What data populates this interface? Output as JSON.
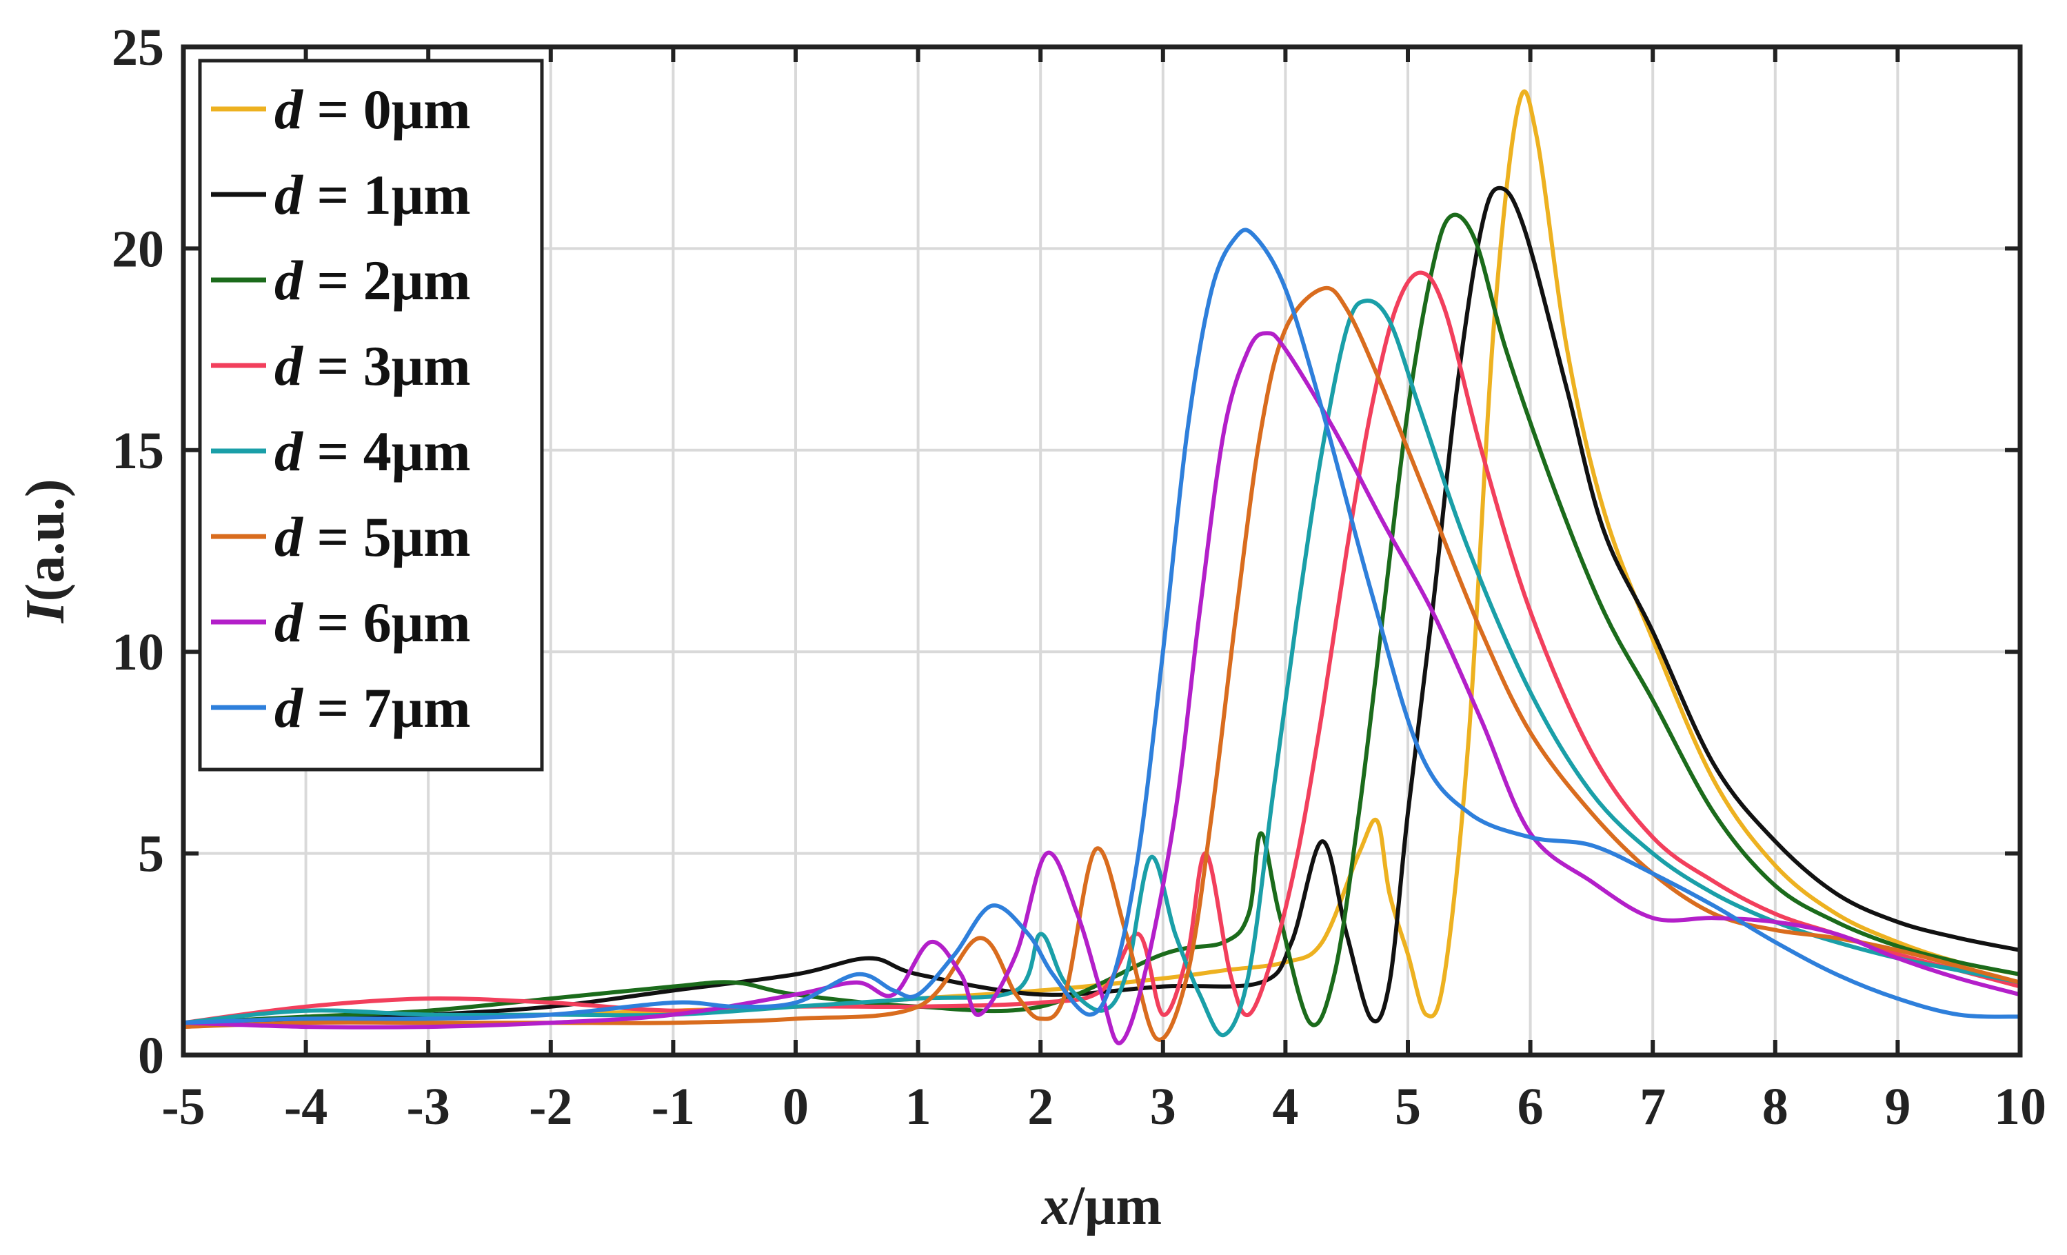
{
  "chart_data": {
    "type": "line",
    "title": "",
    "xlabel": {
      "var": "x",
      "rest": "/μm"
    },
    "ylabel": {
      "var": "I",
      "rest": "(a.u.)"
    },
    "xlim": [
      -5,
      10
    ],
    "ylim": [
      0,
      25
    ],
    "xticks": [
      -5,
      -4,
      -3,
      -2,
      -1,
      0,
      1,
      2,
      3,
      4,
      5,
      6,
      7,
      8,
      9,
      10
    ],
    "yticks": [
      0,
      5,
      10,
      15,
      20,
      25
    ],
    "grid": true,
    "legend_position": "top-left",
    "series": [
      {
        "name": "d = 0μm",
        "d_prefix": "d",
        "label_rest": " = 0μm",
        "color": "#EDB120",
        "points": [
          [
            -5,
            0.8
          ],
          [
            -4,
            0.85
          ],
          [
            -3,
            0.9
          ],
          [
            -2,
            1.0
          ],
          [
            -1,
            1.1
          ],
          [
            0,
            1.2
          ],
          [
            1,
            1.4
          ],
          [
            2,
            1.6
          ],
          [
            3,
            1.9
          ],
          [
            3.5,
            2.1
          ],
          [
            4,
            2.3
          ],
          [
            4.3,
            2.8
          ],
          [
            4.6,
            5.0
          ],
          [
            4.75,
            5.8
          ],
          [
            4.85,
            4.0
          ],
          [
            5.0,
            2.5
          ],
          [
            5.15,
            1.0
          ],
          [
            5.3,
            2.0
          ],
          [
            5.5,
            8.0
          ],
          [
            5.7,
            18.0
          ],
          [
            5.9,
            23.5
          ],
          [
            6.05,
            22.8
          ],
          [
            6.3,
            17.5
          ],
          [
            6.6,
            13.5
          ],
          [
            7.0,
            10.3
          ],
          [
            7.5,
            6.8
          ],
          [
            8.0,
            4.7
          ],
          [
            8.5,
            3.5
          ],
          [
            9.0,
            2.8
          ],
          [
            9.5,
            2.3
          ],
          [
            10,
            2.0
          ]
        ]
      },
      {
        "name": "d = 1μm",
        "d_prefix": "d",
        "label_rest": " = 1μm",
        "color": "#111111",
        "points": [
          [
            -5,
            0.8
          ],
          [
            -4,
            0.9
          ],
          [
            -3,
            1.0
          ],
          [
            -2,
            1.2
          ],
          [
            -1,
            1.6
          ],
          [
            0,
            2.0
          ],
          [
            0.6,
            2.4
          ],
          [
            1.0,
            2.0
          ],
          [
            2.0,
            1.5
          ],
          [
            3.0,
            1.7
          ],
          [
            3.8,
            1.8
          ],
          [
            4.05,
            2.8
          ],
          [
            4.3,
            5.3
          ],
          [
            4.5,
            3.0
          ],
          [
            4.7,
            0.9
          ],
          [
            4.85,
            1.8
          ],
          [
            5.0,
            6.0
          ],
          [
            5.2,
            11.0
          ],
          [
            5.4,
            16.5
          ],
          [
            5.6,
            20.5
          ],
          [
            5.75,
            21.5
          ],
          [
            5.95,
            20.5
          ],
          [
            6.3,
            16.5
          ],
          [
            6.6,
            13.0
          ],
          [
            7.0,
            10.5
          ],
          [
            7.5,
            7.2
          ],
          [
            8.0,
            5.3
          ],
          [
            8.5,
            4.0
          ],
          [
            9.0,
            3.3
          ],
          [
            9.5,
            2.9
          ],
          [
            10,
            2.6
          ]
        ]
      },
      {
        "name": "d = 2μm",
        "d_prefix": "d",
        "label_rest": " = 2μm",
        "color": "#1B6B1B",
        "points": [
          [
            -5,
            0.8
          ],
          [
            -4,
            0.95
          ],
          [
            -3,
            1.1
          ],
          [
            -2,
            1.4
          ],
          [
            -1,
            1.7
          ],
          [
            -0.5,
            1.8
          ],
          [
            0,
            1.5
          ],
          [
            1,
            1.2
          ],
          [
            2,
            1.2
          ],
          [
            3,
            2.5
          ],
          [
            3.5,
            2.8
          ],
          [
            3.7,
            3.5
          ],
          [
            3.8,
            5.5
          ],
          [
            3.95,
            3.5
          ],
          [
            4.2,
            0.8
          ],
          [
            4.4,
            2.0
          ],
          [
            4.6,
            6.0
          ],
          [
            4.8,
            11.0
          ],
          [
            5.0,
            16.0
          ],
          [
            5.2,
            19.5
          ],
          [
            5.35,
            20.8
          ],
          [
            5.55,
            20.2
          ],
          [
            5.8,
            17.5
          ],
          [
            6.2,
            14.0
          ],
          [
            6.6,
            11.0
          ],
          [
            7.0,
            8.8
          ],
          [
            7.5,
            6.0
          ],
          [
            8.0,
            4.2
          ],
          [
            8.5,
            3.3
          ],
          [
            9.0,
            2.7
          ],
          [
            9.5,
            2.3
          ],
          [
            10,
            2.0
          ]
        ]
      },
      {
        "name": "d = 3μm",
        "d_prefix": "d",
        "label_rest": " = 3μm",
        "color": "#F23F5C",
        "points": [
          [
            -5,
            0.8
          ],
          [
            -4,
            1.2
          ],
          [
            -3,
            1.4
          ],
          [
            -2,
            1.3
          ],
          [
            -1,
            1.1
          ],
          [
            0,
            1.2
          ],
          [
            1,
            1.2
          ],
          [
            2,
            1.3
          ],
          [
            2.5,
            1.6
          ],
          [
            2.8,
            3.0
          ],
          [
            3.0,
            1.0
          ],
          [
            3.2,
            2.5
          ],
          [
            3.35,
            5.0
          ],
          [
            3.55,
            2.0
          ],
          [
            3.7,
            1.0
          ],
          [
            3.9,
            2.5
          ],
          [
            4.1,
            5.0
          ],
          [
            4.3,
            8.5
          ],
          [
            4.5,
            12.5
          ],
          [
            4.7,
            16.0
          ],
          [
            4.9,
            18.5
          ],
          [
            5.1,
            19.4
          ],
          [
            5.3,
            18.5
          ],
          [
            5.6,
            15.0
          ],
          [
            6.0,
            11.0
          ],
          [
            6.5,
            7.5
          ],
          [
            7.0,
            5.4
          ],
          [
            7.5,
            4.3
          ],
          [
            8.0,
            3.5
          ],
          [
            8.5,
            3.0
          ],
          [
            9.0,
            2.5
          ],
          [
            9.5,
            2.1
          ],
          [
            10,
            1.7
          ]
        ]
      },
      {
        "name": "d = 4μm",
        "d_prefix": "d",
        "label_rest": " = 4μm",
        "color": "#1A9FA8",
        "points": [
          [
            -5,
            0.8
          ],
          [
            -4,
            1.1
          ],
          [
            -3,
            1.0
          ],
          [
            -2,
            1.0
          ],
          [
            -1,
            1.0
          ],
          [
            0,
            1.2
          ],
          [
            1,
            1.4
          ],
          [
            1.8,
            1.6
          ],
          [
            2.0,
            3.0
          ],
          [
            2.2,
            1.8
          ],
          [
            2.5,
            1.1
          ],
          [
            2.7,
            2.0
          ],
          [
            2.9,
            4.9
          ],
          [
            3.1,
            3.0
          ],
          [
            3.3,
            1.5
          ],
          [
            3.5,
            0.5
          ],
          [
            3.7,
            2.0
          ],
          [
            3.9,
            6.5
          ],
          [
            4.1,
            11.0
          ],
          [
            4.3,
            15.0
          ],
          [
            4.5,
            18.0
          ],
          [
            4.65,
            18.7
          ],
          [
            4.85,
            18.2
          ],
          [
            5.1,
            16.0
          ],
          [
            5.5,
            12.5
          ],
          [
            6.0,
            9.0
          ],
          [
            6.5,
            6.5
          ],
          [
            7.0,
            5.0
          ],
          [
            7.5,
            4.0
          ],
          [
            8.0,
            3.3
          ],
          [
            8.5,
            2.8
          ],
          [
            9.0,
            2.4
          ],
          [
            9.5,
            2.1
          ],
          [
            10,
            1.8
          ]
        ]
      },
      {
        "name": "d = 5μm",
        "d_prefix": "d",
        "label_rest": " = 5μm",
        "color": "#D96C1E",
        "points": [
          [
            -5,
            0.7
          ],
          [
            -4,
            0.8
          ],
          [
            -3,
            0.8
          ],
          [
            -2,
            0.8
          ],
          [
            -1,
            0.8
          ],
          [
            0,
            0.9
          ],
          [
            1,
            1.2
          ],
          [
            1.5,
            2.9
          ],
          [
            1.8,
            1.5
          ],
          [
            2.0,
            0.9
          ],
          [
            2.2,
            1.5
          ],
          [
            2.45,
            5.1
          ],
          [
            2.7,
            3.0
          ],
          [
            2.95,
            0.4
          ],
          [
            3.2,
            2.0
          ],
          [
            3.4,
            6.0
          ],
          [
            3.6,
            11.0
          ],
          [
            3.8,
            15.5
          ],
          [
            4.0,
            18.0
          ],
          [
            4.3,
            19.0
          ],
          [
            4.5,
            18.5
          ],
          [
            4.8,
            16.5
          ],
          [
            5.2,
            13.5
          ],
          [
            5.6,
            10.5
          ],
          [
            6.0,
            8.0
          ],
          [
            6.5,
            6.0
          ],
          [
            7.0,
            4.5
          ],
          [
            7.5,
            3.5
          ],
          [
            8.0,
            3.1
          ],
          [
            8.5,
            2.9
          ],
          [
            9.0,
            2.6
          ],
          [
            9.5,
            2.2
          ],
          [
            10,
            1.8
          ]
        ]
      },
      {
        "name": "d = 6μm",
        "d_prefix": "d",
        "label_rest": " = 6μm",
        "color": "#B31FC9",
        "points": [
          [
            -5,
            0.8
          ],
          [
            -4,
            0.7
          ],
          [
            -3,
            0.7
          ],
          [
            -2,
            0.8
          ],
          [
            -1,
            1.0
          ],
          [
            0,
            1.5
          ],
          [
            0.5,
            1.8
          ],
          [
            0.8,
            1.5
          ],
          [
            1.1,
            2.8
          ],
          [
            1.35,
            2.0
          ],
          [
            1.5,
            1.0
          ],
          [
            1.8,
            2.5
          ],
          [
            2.05,
            5.0
          ],
          [
            2.3,
            3.5
          ],
          [
            2.5,
            1.5
          ],
          [
            2.65,
            0.3
          ],
          [
            2.85,
            2.0
          ],
          [
            3.1,
            6.0
          ],
          [
            3.3,
            11.0
          ],
          [
            3.5,
            15.5
          ],
          [
            3.7,
            17.5
          ],
          [
            3.85,
            17.9
          ],
          [
            4.0,
            17.5
          ],
          [
            4.4,
            15.5
          ],
          [
            4.8,
            13.2
          ],
          [
            5.2,
            11.0
          ],
          [
            5.6,
            8.3
          ],
          [
            6.0,
            5.5
          ],
          [
            6.5,
            4.3
          ],
          [
            7.0,
            3.4
          ],
          [
            7.5,
            3.4
          ],
          [
            8.0,
            3.3
          ],
          [
            8.5,
            3.0
          ],
          [
            9.0,
            2.4
          ],
          [
            9.5,
            1.9
          ],
          [
            10,
            1.5
          ]
        ]
      },
      {
        "name": "d = 7μm",
        "d_prefix": "d",
        "label_rest": " = 7μm",
        "color": "#2E7FDB",
        "points": [
          [
            -5,
            0.8
          ],
          [
            -4,
            0.9
          ],
          [
            -3,
            0.9
          ],
          [
            -2,
            1.0
          ],
          [
            -1,
            1.3
          ],
          [
            -0.5,
            1.2
          ],
          [
            0,
            1.3
          ],
          [
            0.5,
            2.0
          ],
          [
            0.8,
            1.6
          ],
          [
            1.0,
            1.5
          ],
          [
            1.3,
            2.5
          ],
          [
            1.6,
            3.7
          ],
          [
            1.9,
            3.0
          ],
          [
            2.1,
            2.0
          ],
          [
            2.4,
            1.0
          ],
          [
            2.6,
            2.0
          ],
          [
            2.8,
            5.0
          ],
          [
            3.0,
            10.0
          ],
          [
            3.2,
            15.5
          ],
          [
            3.4,
            19.0
          ],
          [
            3.6,
            20.3
          ],
          [
            3.75,
            20.3
          ],
          [
            4.0,
            19.0
          ],
          [
            4.3,
            16.0
          ],
          [
            4.7,
            11.5
          ],
          [
            5.1,
            7.5
          ],
          [
            5.5,
            6.0
          ],
          [
            6.0,
            5.4
          ],
          [
            6.5,
            5.2
          ],
          [
            7.0,
            4.5
          ],
          [
            7.5,
            3.7
          ],
          [
            8.0,
            2.8
          ],
          [
            8.5,
            2.0
          ],
          [
            9.0,
            1.4
          ],
          [
            9.5,
            1.0
          ],
          [
            10,
            0.95
          ]
        ]
      }
    ]
  }
}
